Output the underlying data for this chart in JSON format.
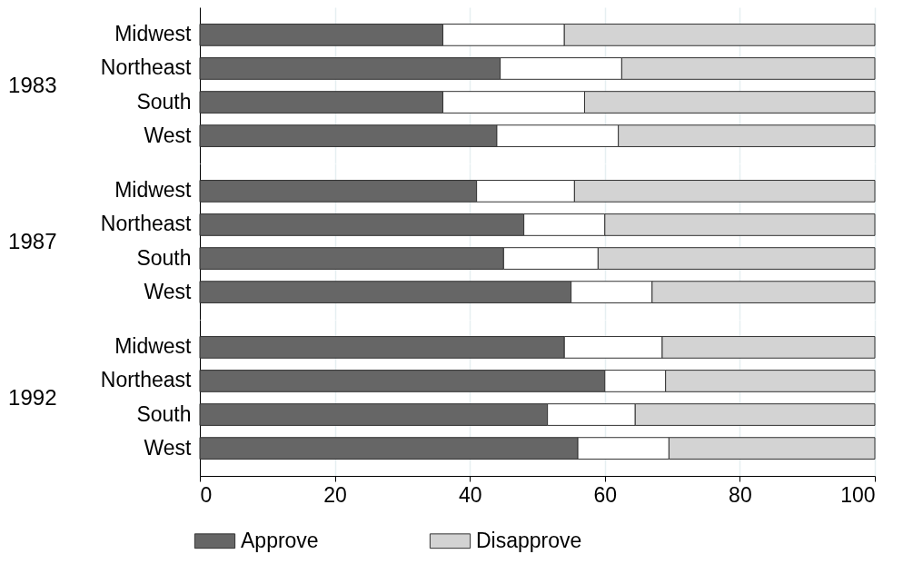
{
  "chart_data": [
    {
      "type": "bar",
      "orientation": "horizontal",
      "stacked": true,
      "ylabel": "1983",
      "categories": [
        "Midwest",
        "Northeast",
        "South",
        "West"
      ],
      "xlim": [
        0,
        100
      ],
      "xticks": [
        0,
        20,
        40,
        60,
        80,
        100
      ],
      "grid": "x",
      "tick_labels": "y",
      "series": [
        {
          "color": "#666666",
          "values": [
            36,
            44.5,
            36,
            44
          ]
        },
        {
          "color": "#ffffff",
          "values": [
            18,
            18,
            21,
            18
          ]
        },
        {
          "color": "#d3d3d3",
          "values": [
            46,
            37.5,
            43,
            38
          ]
        }
      ]
    },
    {
      "type": "bar",
      "orientation": "horizontal",
      "stacked": true,
      "ylabel": "1987",
      "categories": [
        "Midwest",
        "Northeast",
        "South",
        "West"
      ],
      "xlim": [
        0,
        100
      ],
      "xticks": [
        0,
        20,
        40,
        60,
        80,
        100
      ],
      "grid": "x",
      "tick_labels": "y",
      "series": [
        {
          "color": "#666666",
          "values": [
            41,
            48,
            45,
            55
          ]
        },
        {
          "color": "#ffffff",
          "values": [
            14.5,
            12,
            14,
            12
          ]
        },
        {
          "color": "#d3d3d3",
          "values": [
            44.5,
            40,
            41,
            33
          ]
        }
      ]
    },
    {
      "type": "bar",
      "orientation": "horizontal",
      "stacked": true,
      "ylabel": "1992",
      "categories": [
        "Midwest",
        "Northeast",
        "South",
        "West"
      ],
      "xlim": [
        0,
        100
      ],
      "xticks": [
        0,
        20,
        40,
        60,
        80,
        100
      ],
      "grid": "x",
      "legend": "bottom",
      "series": [
        {
          "name": "Approve",
          "color": "#666666",
          "values": [
            54,
            60,
            51.5,
            56
          ]
        },
        {
          "color": "#ffffff",
          "values": [
            14.5,
            9,
            13,
            13.5
          ]
        },
        {
          "name": "Disapprove",
          "color": "#d3d3d3",
          "values": [
            31.5,
            31,
            35.5,
            30.5
          ]
        }
      ]
    }
  ]
}
